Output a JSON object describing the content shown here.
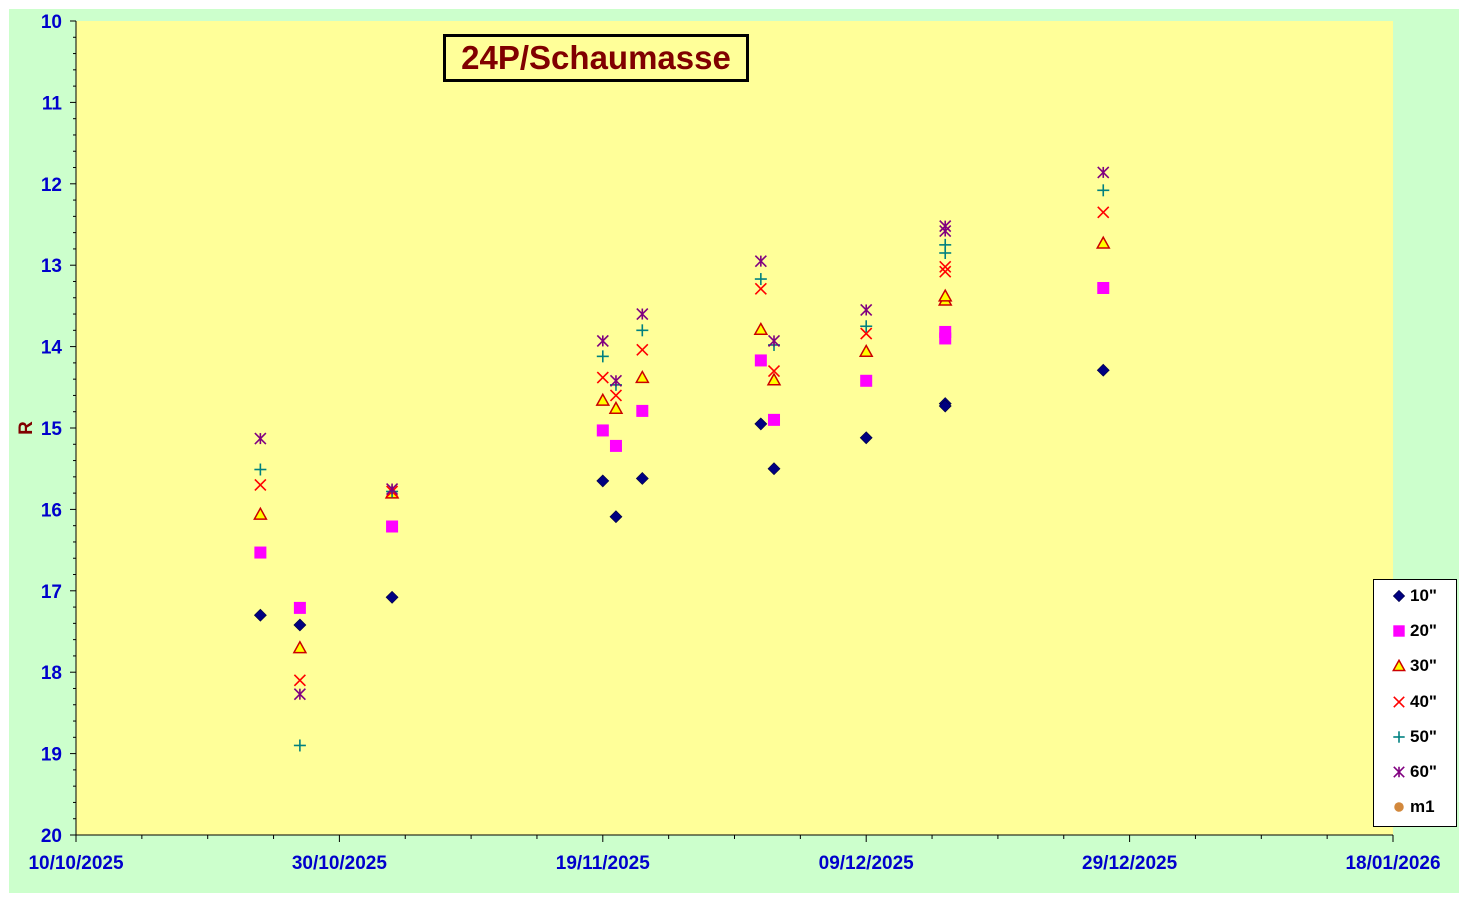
{
  "chart_data": {
    "type": "scatter",
    "title": "24P/Schaumasse",
    "xlabel": "",
    "ylabel": "R",
    "ylim": [
      20,
      10
    ],
    "y_inverted": true,
    "yticks": [
      "10",
      "11",
      "12",
      "13",
      "14",
      "15",
      "16",
      "17",
      "18",
      "19",
      "20"
    ],
    "xlim": [
      "2025-10-10",
      "2026-01-18"
    ],
    "xticks": [
      "10/10/2025",
      "30/10/2025",
      "19/11/2025",
      "09/12/2025",
      "29/12/2025",
      "18/01/2026"
    ],
    "legend_position": "bottom-right",
    "grid": false,
    "colors": {
      "page_background": "#ccffcc",
      "plot_background": "#ffff99",
      "tick_labels": "#0000cc",
      "title_text": "#800000"
    },
    "series": [
      {
        "name": "10\"",
        "marker": "diamond",
        "color": "#000080",
        "points": [
          {
            "x": "2025-10-24",
            "y": 17.3
          },
          {
            "x": "2025-10-27",
            "y": 17.42
          },
          {
            "x": "2025-11-03",
            "y": 17.08
          },
          {
            "x": "2025-11-19",
            "y": 15.65
          },
          {
            "x": "2025-11-20",
            "y": 16.09
          },
          {
            "x": "2025-11-22",
            "y": 15.62
          },
          {
            "x": "2025-12-01",
            "y": 14.95
          },
          {
            "x": "2025-12-02",
            "y": 15.5
          },
          {
            "x": "2025-12-09",
            "y": 15.12
          },
          {
            "x": "2025-12-15",
            "y": 14.7
          },
          {
            "x": "2025-12-15",
            "y": 14.73
          },
          {
            "x": "2025-12-27",
            "y": 14.29
          }
        ]
      },
      {
        "name": "20\"",
        "marker": "square",
        "color": "#ff00ff",
        "points": [
          {
            "x": "2025-10-24",
            "y": 16.53
          },
          {
            "x": "2025-10-27",
            "y": 17.21
          },
          {
            "x": "2025-11-03",
            "y": 16.21
          },
          {
            "x": "2025-11-19",
            "y": 15.03
          },
          {
            "x": "2025-11-20",
            "y": 15.22
          },
          {
            "x": "2025-11-22",
            "y": 14.79
          },
          {
            "x": "2025-12-01",
            "y": 14.17
          },
          {
            "x": "2025-12-02",
            "y": 14.9
          },
          {
            "x": "2025-12-09",
            "y": 14.42
          },
          {
            "x": "2025-12-15",
            "y": 13.9
          },
          {
            "x": "2025-12-15",
            "y": 13.82
          },
          {
            "x": "2025-12-27",
            "y": 13.28
          }
        ]
      },
      {
        "name": "30\"",
        "marker": "triangle",
        "color": "#cc0000",
        "points": [
          {
            "x": "2025-10-24",
            "y": 16.06
          },
          {
            "x": "2025-10-27",
            "y": 17.7
          },
          {
            "x": "2025-11-03",
            "y": 15.8
          },
          {
            "x": "2025-11-19",
            "y": 14.66
          },
          {
            "x": "2025-11-20",
            "y": 14.76
          },
          {
            "x": "2025-11-22",
            "y": 14.38
          },
          {
            "x": "2025-12-01",
            "y": 13.79
          },
          {
            "x": "2025-12-02",
            "y": 14.41
          },
          {
            "x": "2025-12-09",
            "y": 14.06
          },
          {
            "x": "2025-12-15",
            "y": 13.43
          },
          {
            "x": "2025-12-15",
            "y": 13.38
          },
          {
            "x": "2025-12-27",
            "y": 12.73
          }
        ]
      },
      {
        "name": "40\"",
        "marker": "x",
        "color": "#ff0000",
        "points": [
          {
            "x": "2025-10-24",
            "y": 15.7
          },
          {
            "x": "2025-10-27",
            "y": 18.1
          },
          {
            "x": "2025-11-03",
            "y": 15.78
          },
          {
            "x": "2025-11-19",
            "y": 14.38
          },
          {
            "x": "2025-11-20",
            "y": 14.6
          },
          {
            "x": "2025-11-22",
            "y": 14.04
          },
          {
            "x": "2025-12-01",
            "y": 13.29
          },
          {
            "x": "2025-12-02",
            "y": 14.3
          },
          {
            "x": "2025-12-09",
            "y": 13.84
          },
          {
            "x": "2025-12-15",
            "y": 13.08
          },
          {
            "x": "2025-12-15",
            "y": 13.02
          },
          {
            "x": "2025-12-27",
            "y": 12.35
          }
        ]
      },
      {
        "name": "50\"",
        "marker": "plus",
        "color": "#008080",
        "points": [
          {
            "x": "2025-10-24",
            "y": 15.51
          },
          {
            "x": "2025-10-27",
            "y": 18.9
          },
          {
            "x": "2025-11-03",
            "y": 15.78
          },
          {
            "x": "2025-11-19",
            "y": 14.12
          },
          {
            "x": "2025-11-20",
            "y": 14.47
          },
          {
            "x": "2025-11-22",
            "y": 13.8
          },
          {
            "x": "2025-12-01",
            "y": 13.17
          },
          {
            "x": "2025-12-02",
            "y": 13.98
          },
          {
            "x": "2025-12-09",
            "y": 13.75
          },
          {
            "x": "2025-12-15",
            "y": 12.85
          },
          {
            "x": "2025-12-15",
            "y": 12.75
          },
          {
            "x": "2025-12-27",
            "y": 12.08
          }
        ]
      },
      {
        "name": "60\"",
        "marker": "star",
        "color": "#800080",
        "points": [
          {
            "x": "2025-10-24",
            "y": 15.13
          },
          {
            "x": "2025-10-27",
            "y": 18.27
          },
          {
            "x": "2025-11-03",
            "y": 15.75
          },
          {
            "x": "2025-11-19",
            "y": 13.93
          },
          {
            "x": "2025-11-20",
            "y": 14.42
          },
          {
            "x": "2025-11-22",
            "y": 13.6
          },
          {
            "x": "2025-12-01",
            "y": 12.95
          },
          {
            "x": "2025-12-02",
            "y": 13.93
          },
          {
            "x": "2025-12-09",
            "y": 13.55
          },
          {
            "x": "2025-12-15",
            "y": 12.58
          },
          {
            "x": "2025-12-15",
            "y": 12.52
          },
          {
            "x": "2025-12-27",
            "y": 11.86
          }
        ]
      },
      {
        "name": "m1",
        "marker": "circle",
        "color": "#d2883c",
        "points": []
      }
    ]
  }
}
